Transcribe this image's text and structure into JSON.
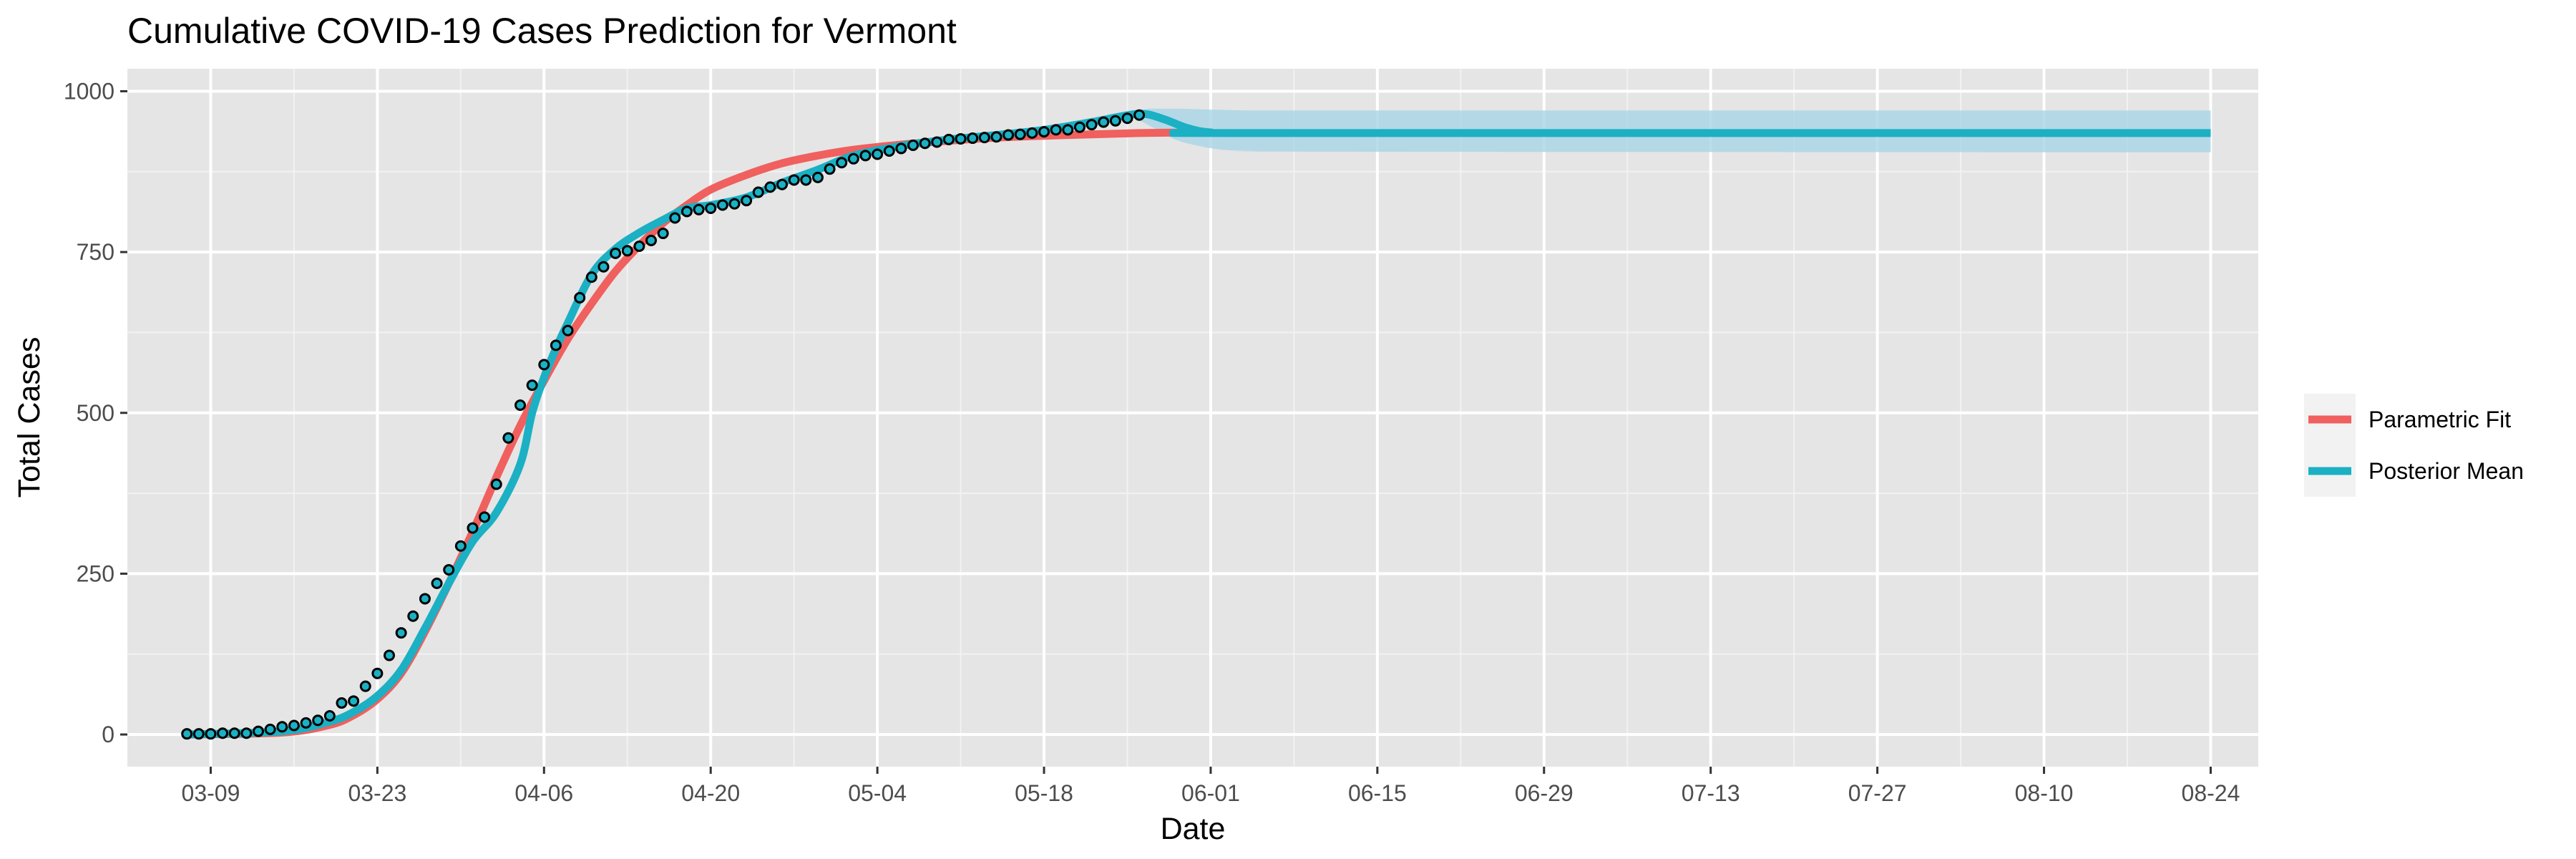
{
  "chart_data": {
    "type": "line",
    "title": "Cumulative COVID-19 Cases Prediction for Vermont",
    "xlabel": "Date",
    "ylabel": "Total Cases",
    "x_ticks": [
      "03-09",
      "03-23",
      "04-06",
      "04-20",
      "05-04",
      "05-18",
      "06-01",
      "06-15",
      "06-29",
      "07-13",
      "07-27",
      "08-10",
      "08-24"
    ],
    "x_tick_dates": [
      "2020-03-09",
      "2020-03-23",
      "2020-04-06",
      "2020-04-20",
      "2020-05-04",
      "2020-05-18",
      "2020-06-01",
      "2020-06-15",
      "2020-06-29",
      "2020-07-13",
      "2020-07-27",
      "2020-08-10",
      "2020-08-24"
    ],
    "xlim": [
      "2020-03-02",
      "2020-08-28"
    ],
    "y_ticks": [
      0,
      250,
      500,
      750,
      1000
    ],
    "ylim": [
      -50,
      1035
    ],
    "grid": true,
    "legend_position": "right",
    "colors": {
      "parametric": "#F0605E",
      "posterior": "#1BB0C4",
      "band": "#A8D5E6",
      "panel": "#E5E5E5",
      "grid_major": "#FFFFFF",
      "point_fill": "#1BB0C4",
      "point_stroke": "#000000"
    },
    "series": [
      {
        "name": "Parametric Fit",
        "kind": "line",
        "x": [
          "2020-03-07",
          "2020-03-15",
          "2020-03-19",
          "2020-03-21",
          "2020-03-23",
          "2020-03-25",
          "2020-03-27",
          "2020-03-29",
          "2020-03-31",
          "2020-04-02",
          "2020-04-04",
          "2020-04-06",
          "2020-04-08",
          "2020-04-10",
          "2020-04-12",
          "2020-04-14",
          "2020-04-16",
          "2020-04-18",
          "2020-04-20",
          "2020-04-23",
          "2020-04-26",
          "2020-04-29",
          "2020-05-02",
          "2020-05-06",
          "2020-05-10",
          "2020-05-14",
          "2020-05-20",
          "2020-05-26",
          "2020-06-01"
        ],
        "y": [
          0,
          3,
          15,
          30,
          55,
          95,
          160,
          235,
          315,
          400,
          480,
          550,
          615,
          670,
          720,
          760,
          795,
          823,
          847,
          870,
          888,
          900,
          909,
          917,
          923,
          928,
          932,
          935,
          936
        ]
      },
      {
        "name": "Posterior Mean",
        "kind": "line",
        "x": [
          "2020-03-07",
          "2020-03-15",
          "2020-03-19",
          "2020-03-21",
          "2020-03-23",
          "2020-03-25",
          "2020-03-27",
          "2020-03-29",
          "2020-03-31",
          "2020-04-02",
          "2020-04-04",
          "2020-04-05",
          "2020-04-06",
          "2020-04-07",
          "2020-04-08",
          "2020-04-10",
          "2020-04-12",
          "2020-04-14",
          "2020-04-16",
          "2020-04-18",
          "2020-04-20",
          "2020-04-23",
          "2020-04-26",
          "2020-04-29",
          "2020-05-02",
          "2020-05-06",
          "2020-05-10",
          "2020-05-14",
          "2020-05-18",
          "2020-05-22",
          "2020-05-26",
          "2020-05-28",
          "2020-05-30",
          "2020-06-01",
          "2020-06-05",
          "2020-08-24"
        ],
        "y": [
          0,
          5,
          20,
          35,
          60,
          100,
          165,
          235,
          300,
          345,
          420,
          500,
          555,
          600,
          640,
          715,
          755,
          780,
          800,
          818,
          823,
          835,
          858,
          878,
          900,
          915,
          925,
          932,
          940,
          952,
          965,
          957,
          943,
          936,
          935,
          935
        ]
      },
      {
        "name": "Posterior Interval",
        "kind": "band",
        "x": [
          "2020-05-25",
          "2020-05-27",
          "2020-05-29",
          "2020-05-31",
          "2020-06-02",
          "2020-06-05",
          "2020-06-10",
          "2020-08-24"
        ],
        "upper": [
          968,
          973,
          973,
          972,
          971,
          970,
          970,
          970
        ],
        "lower": [
          965,
          945,
          925,
          915,
          909,
          907,
          906,
          905
        ]
      },
      {
        "name": "Observed",
        "kind": "points",
        "x": [
          "2020-03-07",
          "2020-03-08",
          "2020-03-09",
          "2020-03-10",
          "2020-03-11",
          "2020-03-12",
          "2020-03-13",
          "2020-03-14",
          "2020-03-15",
          "2020-03-16",
          "2020-03-17",
          "2020-03-18",
          "2020-03-19",
          "2020-03-20",
          "2020-03-21",
          "2020-03-22",
          "2020-03-23",
          "2020-03-24",
          "2020-03-25",
          "2020-03-26",
          "2020-03-27",
          "2020-03-28",
          "2020-03-29",
          "2020-03-30",
          "2020-03-31",
          "2020-04-01",
          "2020-04-02",
          "2020-04-03",
          "2020-04-04",
          "2020-04-05",
          "2020-04-06",
          "2020-04-07",
          "2020-04-08",
          "2020-04-09",
          "2020-04-10",
          "2020-04-11",
          "2020-04-12",
          "2020-04-13",
          "2020-04-14",
          "2020-04-15",
          "2020-04-16",
          "2020-04-17",
          "2020-04-18",
          "2020-04-19",
          "2020-04-20",
          "2020-04-21",
          "2020-04-22",
          "2020-04-23",
          "2020-04-24",
          "2020-04-25",
          "2020-04-26",
          "2020-04-27",
          "2020-04-28",
          "2020-04-29",
          "2020-04-30",
          "2020-05-01",
          "2020-05-02",
          "2020-05-03",
          "2020-05-04",
          "2020-05-05",
          "2020-05-06",
          "2020-05-07",
          "2020-05-08",
          "2020-05-09",
          "2020-05-10",
          "2020-05-11",
          "2020-05-12",
          "2020-05-13",
          "2020-05-14",
          "2020-05-15",
          "2020-05-16",
          "2020-05-17",
          "2020-05-18",
          "2020-05-19",
          "2020-05-20",
          "2020-05-21",
          "2020-05-22",
          "2020-05-23",
          "2020-05-24",
          "2020-05-25",
          "2020-05-26"
        ],
        "y": [
          1,
          1,
          1,
          2,
          2,
          2,
          5,
          8,
          12,
          14,
          18,
          22,
          29,
          49,
          52,
          75,
          95,
          123,
          158,
          184,
          211,
          235,
          256,
          293,
          321,
          338,
          389,
          461,
          512,
          543,
          575,
          605,
          628,
          679,
          711,
          727,
          748,
          752,
          759,
          768,
          779,
          803,
          813,
          816,
          818,
          823,
          825,
          830,
          843,
          851,
          855,
          862,
          862,
          866,
          879,
          889,
          895,
          900,
          902,
          907,
          911,
          916,
          919,
          921,
          925,
          926,
          927,
          928,
          929,
          932,
          933,
          935,
          937,
          940,
          940,
          944,
          948,
          952,
          954,
          958,
          963
        ]
      }
    ],
    "legend": [
      {
        "label": "Parametric Fit",
        "color": "#F0605E"
      },
      {
        "label": "Posterior Mean",
        "color": "#1BB0C4"
      }
    ]
  }
}
